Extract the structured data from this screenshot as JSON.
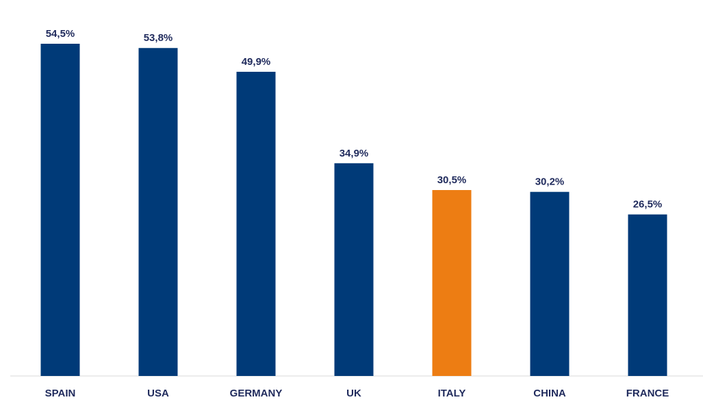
{
  "chart_data": {
    "type": "bar",
    "title": "",
    "xlabel": "",
    "ylabel": "",
    "categories": [
      "SPAIN",
      "USA",
      "GERMANY",
      "UK",
      "ITALY",
      "CHINA",
      "FRANCE"
    ],
    "values": [
      54.5,
      53.8,
      49.9,
      34.9,
      30.5,
      30.2,
      26.5
    ],
    "value_labels": [
      "54,5%",
      "53,8%",
      "49,9%",
      "34,9%",
      "30,5%",
      "30,2%",
      "26,5%"
    ],
    "highlight_category": "ITALY",
    "ylim": [
      0,
      54.5
    ],
    "grid": false,
    "legend": "none",
    "colors": {
      "bar": "#003a78",
      "highlight": "#ed7d13",
      "label_text": "#1f2a5c",
      "axis_line": "#d9d9d9"
    }
  }
}
